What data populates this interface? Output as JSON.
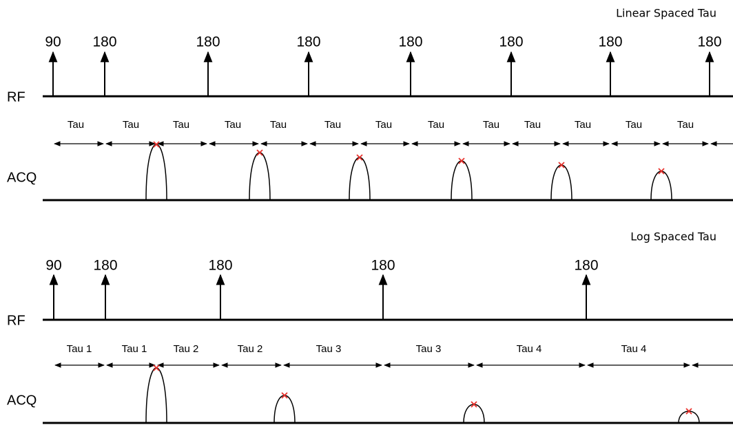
{
  "panels": [
    {
      "title": "Linear Spaced Tau",
      "rf_label": "RF",
      "acq_label": "ACQ",
      "pulses": [
        "90",
        "180",
        "180",
        "180",
        "180",
        "180",
        "180",
        "180"
      ],
      "intervals": [
        "Tau",
        "Tau",
        "Tau",
        "Tau",
        "Tau",
        "Tau",
        "Tau",
        "Tau",
        "Tau",
        "Tau",
        "Tau",
        "Tau",
        "Tau"
      ]
    },
    {
      "title": "Log Spaced Tau",
      "rf_label": "RF",
      "acq_label": "ACQ",
      "pulses": [
        "90",
        "180",
        "180",
        "180",
        "180"
      ],
      "intervals": [
        "Tau 1",
        "Tau 1",
        "Tau 2",
        "Tau 2",
        "Tau 3",
        "Tau 3",
        "Tau 4",
        "Tau 4"
      ]
    }
  ]
}
